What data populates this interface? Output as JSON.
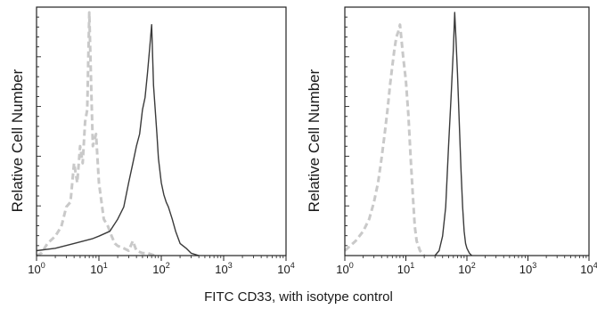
{
  "figure": {
    "shared_xlabel": "FITC CD33, with isotype control"
  },
  "chart_data": [
    {
      "type": "line",
      "ylabel": "Relative Cell Number",
      "xlabel": "FITC CD33, with isotype control",
      "x_scale": "log",
      "xlim": [
        1,
        10000
      ],
      "ylim": [
        0,
        1.0
      ],
      "x_tick_labels": [
        {
          "base": "10",
          "exp": "0"
        },
        {
          "base": "10",
          "exp": "1"
        },
        {
          "base": "10",
          "exp": "2"
        },
        {
          "base": "10",
          "exp": "3"
        },
        {
          "base": "10",
          "exp": "4"
        }
      ],
      "grid": false,
      "series": [
        {
          "role": "isotype control",
          "style": "dashed",
          "color": "#c9c9c9",
          "x": [
            1,
            1.2,
            1.5,
            2,
            2.5,
            3,
            3.5,
            4,
            4.5,
            5,
            5.5,
            6,
            6.5,
            7,
            7.5,
            8,
            9,
            10,
            11,
            12,
            14,
            16,
            18,
            20,
            25,
            30,
            35,
            40,
            50,
            60,
            80
          ],
          "y": [
            0.0,
            0.01,
            0.05,
            0.08,
            0.12,
            0.2,
            0.22,
            0.38,
            0.3,
            0.45,
            0.38,
            0.55,
            0.6,
            1.0,
            0.7,
            0.45,
            0.5,
            0.3,
            0.22,
            0.15,
            0.12,
            0.08,
            0.05,
            0.04,
            0.03,
            0.02,
            0.06,
            0.02,
            0.01,
            0.01,
            0.0
          ]
        },
        {
          "role": "CD33",
          "style": "solid",
          "color": "#3a3a3a",
          "x": [
            1,
            2,
            4,
            8,
            10,
            15,
            20,
            25,
            30,
            35,
            40,
            45,
            50,
            55,
            60,
            65,
            70,
            75,
            80,
            85,
            90,
            100,
            110,
            120,
            130,
            150,
            170,
            200,
            250,
            300,
            400
          ],
          "y": [
            0.02,
            0.03,
            0.05,
            0.07,
            0.08,
            0.1,
            0.15,
            0.2,
            0.3,
            0.38,
            0.45,
            0.5,
            0.6,
            0.65,
            0.75,
            0.85,
            0.95,
            0.7,
            0.6,
            0.5,
            0.4,
            0.3,
            0.25,
            0.22,
            0.2,
            0.15,
            0.1,
            0.05,
            0.03,
            0.01,
            0.0
          ]
        }
      ]
    },
    {
      "type": "line",
      "ylabel": "Relative Cell Number",
      "xlabel": "FITC CD33, with isotype control",
      "x_scale": "log",
      "xlim": [
        1,
        10000
      ],
      "ylim": [
        0,
        1.0
      ],
      "x_tick_labels": [
        {
          "base": "10",
          "exp": "0"
        },
        {
          "base": "10",
          "exp": "1"
        },
        {
          "base": "10",
          "exp": "2"
        },
        {
          "base": "10",
          "exp": "3"
        },
        {
          "base": "10",
          "exp": "4"
        }
      ],
      "grid": false,
      "series": [
        {
          "role": "isotype control",
          "style": "dashed",
          "color": "#c9c9c9",
          "x": [
            1,
            1.5,
            2,
            2.5,
            3,
            3.5,
            4,
            4.5,
            5,
            5.5,
            6,
            6.5,
            7,
            7.5,
            8,
            9,
            10,
            11,
            12,
            13,
            14,
            15,
            17,
            20
          ],
          "y": [
            0.02,
            0.06,
            0.1,
            0.15,
            0.22,
            0.3,
            0.4,
            0.5,
            0.6,
            0.7,
            0.78,
            0.85,
            0.9,
            0.92,
            0.95,
            0.82,
            0.72,
            0.58,
            0.4,
            0.25,
            0.12,
            0.06,
            0.02,
            0.0
          ]
        },
        {
          "role": "CD33",
          "style": "solid",
          "color": "#3a3a3a",
          "x": [
            30,
            35,
            40,
            45,
            50,
            55,
            60,
            63,
            66,
            70,
            75,
            80,
            85,
            90,
            95,
            100,
            110,
            120
          ],
          "y": [
            0.0,
            0.02,
            0.08,
            0.2,
            0.45,
            0.65,
            0.85,
            1.0,
            0.9,
            0.75,
            0.55,
            0.35,
            0.2,
            0.1,
            0.05,
            0.03,
            0.01,
            0.0
          ]
        }
      ]
    }
  ]
}
